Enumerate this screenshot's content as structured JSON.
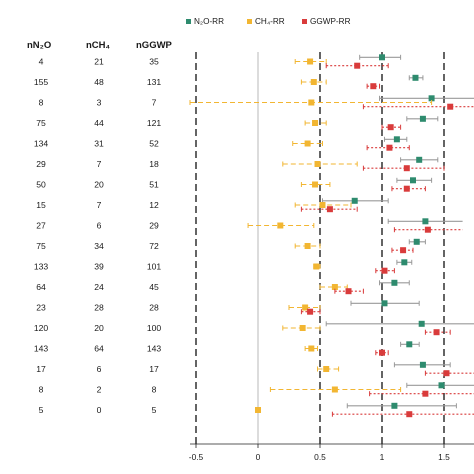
{
  "chart_data": {
    "type": "scatter",
    "title": "",
    "xlabel": "",
    "ylabel": "",
    "xlim": [
      -0.6,
      1.6
    ],
    "xticks": [
      "-0.5",
      "0",
      "0.5",
      "1",
      "1.5"
    ],
    "xtick_values": [
      -0.5,
      0,
      0.5,
      1,
      1.5
    ],
    "reference_lines": [
      -0.5,
      0.5,
      1,
      1.5
    ],
    "legend": {
      "position": "top-right"
    },
    "table_headers": {
      "n2o": "nN₂O",
      "ch4": "nCH₄",
      "ggwp": "nGGWP"
    },
    "counts": [
      [
        "4",
        "21",
        "35"
      ],
      [
        "155",
        "48",
        "131"
      ],
      [
        "8",
        "3",
        "7"
      ],
      [
        "75",
        "44",
        "121"
      ],
      [
        "134",
        "31",
        "52"
      ],
      [
        "29",
        "7",
        "18"
      ],
      [
        "50",
        "20",
        "51"
      ],
      [
        "15",
        "7",
        "12"
      ],
      [
        "27",
        "6",
        "29"
      ],
      [
        "75",
        "34",
        "72"
      ],
      [
        "133",
        "39",
        "101"
      ],
      [
        "64",
        "24",
        "45"
      ],
      [
        "23",
        "28",
        "28"
      ],
      [
        "120",
        "20",
        "100"
      ],
      [
        "143",
        "64",
        "143"
      ],
      [
        "17",
        "6",
        "17"
      ],
      [
        "8",
        "2",
        "8"
      ],
      [
        "5",
        "0",
        "5"
      ]
    ],
    "series": [
      {
        "name": "N₂O-RR",
        "color": "#2e8b6e",
        "points": [
          {
            "est": 1.0,
            "lo": 0.82,
            "hi": 1.15
          },
          {
            "est": 1.27,
            "lo": 1.22,
            "hi": 1.33
          },
          {
            "est": 1.4,
            "lo": 0.98,
            "hi": 1.75
          },
          {
            "est": 1.33,
            "lo": 1.2,
            "hi": 1.45
          },
          {
            "est": 1.12,
            "lo": 1.02,
            "hi": 1.2
          },
          {
            "est": 1.3,
            "lo": 1.15,
            "hi": 1.45
          },
          {
            "est": 1.25,
            "lo": 1.12,
            "hi": 1.4
          },
          {
            "est": 0.78,
            "lo": 0.52,
            "hi": 1.05
          },
          {
            "est": 1.35,
            "lo": 1.05,
            "hi": 1.65
          },
          {
            "est": 1.28,
            "lo": 1.22,
            "hi": 1.35
          },
          {
            "est": 1.18,
            "lo": 1.12,
            "hi": 1.24
          },
          {
            "est": 1.1,
            "lo": 0.98,
            "hi": 1.22
          },
          {
            "est": 1.02,
            "lo": 0.75,
            "hi": 1.3
          },
          {
            "est": 1.32,
            "lo": 0.55,
            "hi": 2.0
          },
          {
            "est": 1.22,
            "lo": 1.15,
            "hi": 1.3
          },
          {
            "est": 1.33,
            "lo": 1.1,
            "hi": 1.55
          },
          {
            "est": 1.48,
            "lo": 1.2,
            "hi": 1.8
          },
          {
            "est": 1.1,
            "lo": 0.72,
            "hi": 1.6
          }
        ]
      },
      {
        "name": "CH₄-RR",
        "color": "#f2b632",
        "points": [
          {
            "est": 0.42,
            "lo": 0.3,
            "hi": 0.55
          },
          {
            "est": 0.45,
            "lo": 0.35,
            "hi": 0.55
          },
          {
            "est": 0.43,
            "lo": -0.55,
            "hi": 1.4
          },
          {
            "est": 0.46,
            "lo": 0.38,
            "hi": 0.55
          },
          {
            "est": 0.4,
            "lo": 0.28,
            "hi": 0.52
          },
          {
            "est": 0.48,
            "lo": 0.2,
            "hi": 0.8
          },
          {
            "est": 0.46,
            "lo": 0.35,
            "hi": 0.58
          },
          {
            "est": 0.52,
            "lo": 0.3,
            "hi": 0.75
          },
          {
            "est": 0.18,
            "lo": -0.08,
            "hi": 0.45
          },
          {
            "est": 0.4,
            "lo": 0.3,
            "hi": 0.5
          },
          {
            "est": 0.47,
            "lo": 0.45,
            "hi": 0.5
          },
          {
            "est": 0.62,
            "lo": 0.5,
            "hi": 0.72
          },
          {
            "est": 0.38,
            "lo": 0.25,
            "hi": 0.5
          },
          {
            "est": 0.36,
            "lo": 0.2,
            "hi": 0.5
          },
          {
            "est": 0.43,
            "lo": 0.38,
            "hi": 0.48
          },
          {
            "est": 0.55,
            "lo": 0.48,
            "hi": 0.65
          },
          {
            "est": 0.62,
            "lo": 0.1,
            "hi": 1.15
          },
          {
            "est": 0.0,
            "lo": 0.0,
            "hi": 0.0
          }
        ]
      },
      {
        "name": "GGWP-RR",
        "color": "#d93b3b",
        "points": [
          {
            "est": 0.8,
            "lo": 0.55,
            "hi": 1.05
          },
          {
            "est": 0.93,
            "lo": 0.88,
            "hi": 0.98
          },
          {
            "est": 1.55,
            "lo": 0.85,
            "hi": 2.0
          },
          {
            "est": 1.07,
            "lo": 1.0,
            "hi": 1.15
          },
          {
            "est": 1.06,
            "lo": 0.88,
            "hi": 1.22
          },
          {
            "est": 1.2,
            "lo": 0.85,
            "hi": 1.5
          },
          {
            "est": 1.2,
            "lo": 1.08,
            "hi": 1.35
          },
          {
            "est": 0.58,
            "lo": 0.35,
            "hi": 0.8
          },
          {
            "est": 1.37,
            "lo": 1.1,
            "hi": 1.65
          },
          {
            "est": 1.17,
            "lo": 1.08,
            "hi": 1.25
          },
          {
            "est": 1.02,
            "lo": 0.95,
            "hi": 1.1
          },
          {
            "est": 0.73,
            "lo": 0.62,
            "hi": 0.85
          },
          {
            "est": 0.42,
            "lo": 0.35,
            "hi": 0.5
          },
          {
            "est": 1.44,
            "lo": 1.35,
            "hi": 1.55
          },
          {
            "est": 1.0,
            "lo": 0.95,
            "hi": 1.05
          },
          {
            "est": 1.52,
            "lo": 1.35,
            "hi": 1.75
          },
          {
            "est": 1.35,
            "lo": 0.9,
            "hi": 1.85
          },
          {
            "est": 1.22,
            "lo": 0.6,
            "hi": 1.85
          }
        ]
      }
    ]
  }
}
